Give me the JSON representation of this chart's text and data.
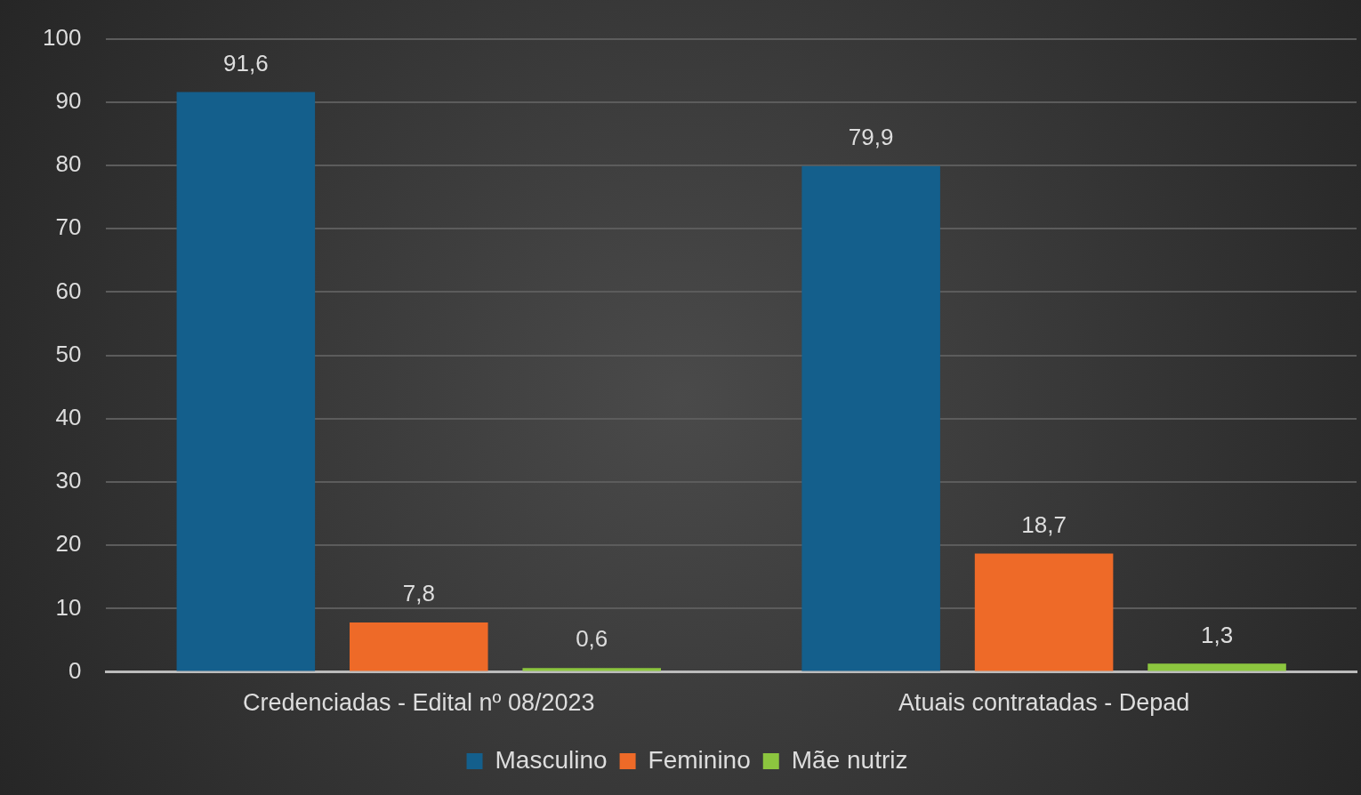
{
  "chart_data": {
    "type": "bar",
    "categories": [
      "Credenciadas - Edital nº 08/2023",
      "Atuais contratadas - Depad"
    ],
    "series": [
      {
        "name": "Masculino",
        "color": "#145f8c",
        "values": [
          91.6,
          79.9
        ],
        "value_labels": [
          "91,6",
          "79,9"
        ]
      },
      {
        "name": "Feminino",
        "color": "#ee6a28",
        "values": [
          7.8,
          18.7
        ],
        "value_labels": [
          "7,8",
          "18,7"
        ]
      },
      {
        "name": "Mãe nutriz",
        "color": "#8cc63f",
        "values": [
          0.6,
          1.3
        ],
        "value_labels": [
          "0,6",
          "1,3"
        ]
      }
    ],
    "ylim": [
      0,
      100
    ],
    "yticks": [
      0,
      10,
      20,
      30,
      40,
      50,
      60,
      70,
      80,
      90,
      100
    ],
    "grid": "y",
    "legend": "bottom"
  }
}
